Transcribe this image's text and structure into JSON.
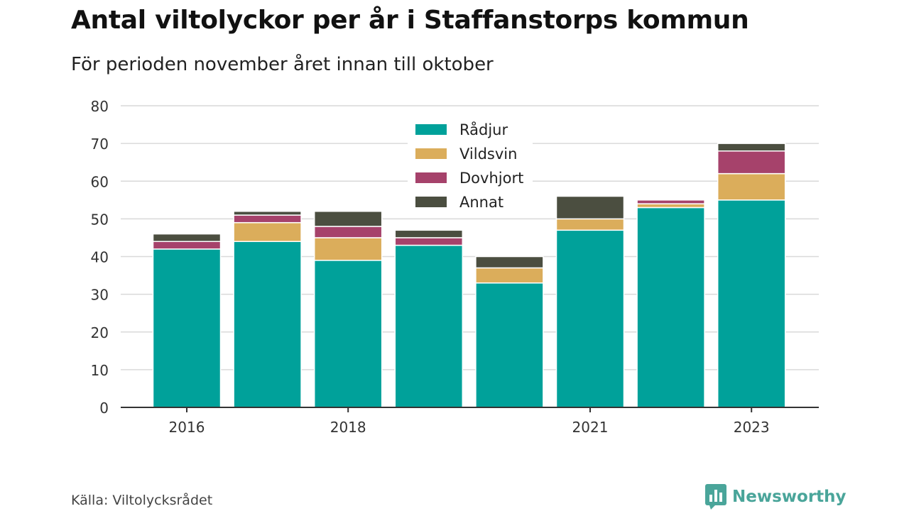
{
  "title": "Antal viltolyckor per år i Staffanstorps kommun",
  "subtitle": "För perioden november året innan till oktober",
  "source": "Källa: Viltolycksrådet",
  "brand": {
    "name": "Newsworthy",
    "icon": "newsworthy-logo-icon",
    "color": "#4aa59a"
  },
  "chart_data": {
    "type": "bar",
    "stacked": true,
    "title": "Antal viltolyckor per år i Staffanstorps kommun",
    "subtitle": "För perioden november året innan till oktober",
    "categories": [
      "2016",
      "2017",
      "2018",
      "2019",
      "2020",
      "2021",
      "2022",
      "2023"
    ],
    "x_tick_labels": [
      "2016",
      "",
      "2018",
      "",
      "",
      "2021",
      "",
      "2023"
    ],
    "y_ticks": [
      "0",
      "10",
      "20",
      "30",
      "40",
      "50",
      "60",
      "70",
      "80"
    ],
    "ylim": [
      0,
      80
    ],
    "grid": "horizontal",
    "legend_position": "top-center",
    "series": [
      {
        "name": "Rådjur",
        "color": "#00a19a",
        "values": [
          42,
          44,
          39,
          43,
          33,
          47,
          53,
          55
        ]
      },
      {
        "name": "Vildsvin",
        "color": "#dbad5b",
        "values": [
          0,
          5,
          6,
          0,
          4,
          3,
          1,
          7
        ]
      },
      {
        "name": "Dovhjort",
        "color": "#a6426b",
        "values": [
          2,
          2,
          3,
          2,
          0,
          0,
          1,
          6
        ]
      },
      {
        "name": "Annat",
        "color": "#4b4e40",
        "values": [
          2,
          1,
          4,
          2,
          3,
          6,
          0,
          2
        ]
      }
    ]
  }
}
